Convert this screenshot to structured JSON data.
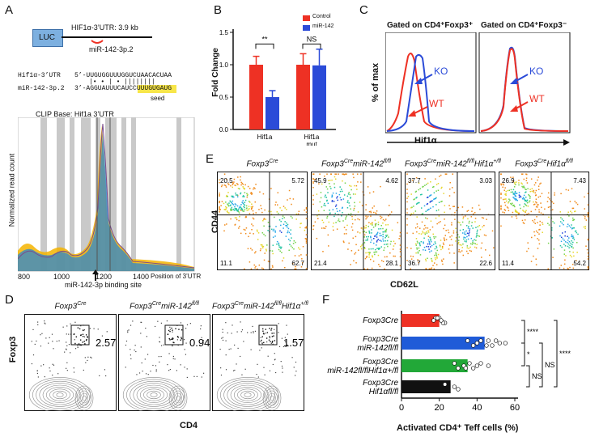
{
  "panels": {
    "A": "A",
    "B": "B",
    "C": "C",
    "D": "D",
    "E": "E",
    "F": "F"
  },
  "panelA": {
    "luc": "LUC",
    "construct": "HIF1α-3’UTR: 3.9 kb",
    "site": "miR-142-3p.2",
    "seq1_label": "Hif1α-3’UTR",
    "seq1": "5’-UUGUGGUUUGGUCUAACACUAA",
    "bonds": "|•  •   |  •  ||||||||",
    "seq2_label": "miR-142-3p.2",
    "seq2": "3’-AGGUAUUUCAUCCUUUGUGAUG",
    "seed": "seed",
    "clip_title": "CLIP Base: Hif1a 3’UTR",
    "ylabel": "Normalized read count",
    "ticks": [
      "800",
      "1000",
      "1200",
      "1400"
    ],
    "pos_label": "Position of 3’UTR",
    "binding": "miR-142-3p binding site"
  },
  "panelB": {
    "ylabel": "Fold Change",
    "legend": [
      "Control",
      "miR-142"
    ],
    "sig": [
      "**",
      "NS"
    ],
    "ticks": [
      "0.0",
      "0.5",
      "1.0",
      "1.5"
    ]
  },
  "panelC": {
    "g1": "Gated on CD4⁺Foxp3⁺",
    "g2": "Gated on CD4⁺Foxp3⁻",
    "ylabel": "% of max",
    "xlabel": "Hif1α",
    "ko": "KO",
    "wt": "WT"
  },
  "panelD": {
    "titles": [
      "Foxp3Cre",
      "Foxp3CremiR-142fl/fl",
      "Foxp3CremiR-142fl/flHif1α+/fl"
    ],
    "values": [
      "2.57",
      "0.94",
      "1.57"
    ],
    "ylabel": "Foxp3",
    "xlabel": "CD4"
  },
  "panelE": {
    "titles": [
      "Foxp3Cre",
      "Foxp3CremiR-142fl/fl",
      "Foxp3CremiR-142fl/flHif1α+/fl",
      "Foxp3CreHif1αfl/fl"
    ],
    "quadrants": [
      [
        "20.5",
        "5.72",
        "11.1",
        "62.7"
      ],
      [
        "45.9",
        "4.62",
        "21.4",
        "28.1"
      ],
      [
        "37.7",
        "3.03",
        "36.7",
        "22.6"
      ],
      [
        "26.9",
        "7.43",
        "11.4",
        "54.2"
      ]
    ],
    "ylabel": "CD44",
    "xlabel": "CD62L"
  },
  "panelF": {
    "xlabel": "Activated CD4⁺ Teff cells (%)",
    "ticks": [
      "0",
      "20",
      "40",
      "60"
    ],
    "sig": [
      "****",
      "*",
      "NS",
      "****",
      "NS"
    ],
    "groups": [
      {
        "l1": "Foxp3Cre",
        "l2": ""
      },
      {
        "l1": "Foxp3Cre",
        "l2": "miR-142fl/fl"
      },
      {
        "l1": "Foxp3Cre",
        "l2": "miR-142fl/flHif1α+/fl"
      },
      {
        "l1": "Foxp3Cre",
        "l2": "Hif1αfl/fl"
      }
    ]
  },
  "chart_data": [
    {
      "type": "bar",
      "panel": "B",
      "categories": [
        "Hif1a",
        "Hif1a mut"
      ],
      "series": [
        {
          "name": "Control",
          "values": [
            1.0,
            1.0
          ],
          "errors": [
            0.13,
            0.17
          ],
          "color": "#ee3124"
        },
        {
          "name": "miR-142",
          "values": [
            0.5,
            0.99
          ],
          "errors": [
            0.1,
            0.25
          ],
          "color": "#2b4bd8"
        }
      ],
      "ylabel": "Fold Change",
      "ylim": [
        0,
        1.5
      ]
    },
    {
      "type": "bar",
      "panel": "F",
      "orientation": "horizontal",
      "categories": [
        "Foxp3Cre",
        "Foxp3Cre miR-142fl/fl",
        "Foxp3Cre miR-142fl/flHif1α+/fl",
        "Foxp3Cre Hif1αfl/fl"
      ],
      "values": [
        20,
        44,
        35,
        26
      ],
      "colors": [
        "#ee3124",
        "#1f5bd8",
        "#22a838",
        "#111111"
      ],
      "points": [
        [
          18,
          21,
          23,
          20,
          17,
          22,
          19,
          21
        ],
        [
          35,
          40,
          45,
          50,
          52,
          48,
          42,
          55,
          38,
          46
        ],
        [
          28,
          33,
          38,
          42,
          46,
          30,
          36,
          40,
          34
        ],
        [
          23,
          28,
          30
        ]
      ],
      "xlabel": "Activated CD4⁺ Teff cells (%)",
      "xlim": [
        0,
        60
      ]
    }
  ],
  "colors": {
    "red": "#ee3124",
    "blue": "#2b4bd8",
    "green": "#22a838",
    "black": "#111111",
    "seed": "#f7e64a",
    "luc": "#7db0e0"
  }
}
